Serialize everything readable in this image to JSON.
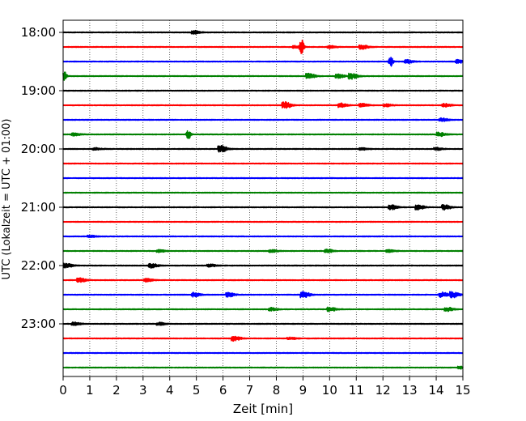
{
  "chart_data": {
    "type": "line",
    "title": "",
    "xlabel": "Zeit  [min]",
    "ylabel": "UTC (Lokalzeit = UTC + 01:00)",
    "xlim": [
      0,
      15
    ],
    "x_ticks": [
      "0",
      "1",
      "2",
      "3",
      "4",
      "5",
      "6",
      "7",
      "8",
      "9",
      "10",
      "11",
      "12",
      "13",
      "14",
      "15"
    ],
    "y_tick_labels": [
      "18:00",
      "19:00",
      "20:00",
      "21:00",
      "22:00",
      "23:00"
    ],
    "grid": "vertical dotted lines at each minute",
    "trace_interval_minutes": 15,
    "trace_colors": [
      "#000000",
      "#ff0000",
      "#0000ff",
      "#008000"
    ],
    "series": [
      {
        "start": "18:00",
        "color": "#000000",
        "events": [
          {
            "t": 4.9,
            "amp": 0.4
          }
        ]
      },
      {
        "start": "18:15",
        "color": "#ff0000",
        "events": [
          {
            "t": 8.7,
            "amp": 0.3
          },
          {
            "t": 8.95,
            "amp": 1.6
          },
          {
            "t": 10.0,
            "amp": 0.3
          },
          {
            "t": 11.2,
            "amp": 0.5
          }
        ]
      },
      {
        "start": "18:30",
        "color": "#0000ff",
        "events": [
          {
            "t": 12.3,
            "amp": 1.2
          },
          {
            "t": 12.9,
            "amp": 0.4
          },
          {
            "t": 14.8,
            "amp": 0.4
          }
        ]
      },
      {
        "start": "18:45",
        "color": "#008000",
        "events": [
          {
            "t": 0.05,
            "amp": 1.1
          },
          {
            "t": 9.2,
            "amp": 0.7
          },
          {
            "t": 10.3,
            "amp": 0.5
          },
          {
            "t": 10.8,
            "amp": 0.7
          }
        ]
      },
      {
        "start": "19:00",
        "color": "#000000",
        "events": []
      },
      {
        "start": "19:15",
        "color": "#ff0000",
        "events": [
          {
            "t": 8.3,
            "amp": 0.8
          },
          {
            "t": 10.4,
            "amp": 0.5
          },
          {
            "t": 11.2,
            "amp": 0.4
          },
          {
            "t": 12.1,
            "amp": 0.3
          },
          {
            "t": 14.3,
            "amp": 0.4
          }
        ]
      },
      {
        "start": "19:30",
        "color": "#0000ff",
        "events": [
          {
            "t": 14.2,
            "amp": 0.4
          }
        ]
      },
      {
        "start": "19:45",
        "color": "#008000",
        "events": [
          {
            "t": 0.4,
            "amp": 0.3
          },
          {
            "t": 4.7,
            "amp": 1.1
          },
          {
            "t": 14.1,
            "amp": 0.5
          }
        ]
      },
      {
        "start": "20:00",
        "color": "#000000",
        "events": [
          {
            "t": 1.2,
            "amp": 0.25
          },
          {
            "t": 5.9,
            "amp": 0.8
          },
          {
            "t": 11.2,
            "amp": 0.25
          },
          {
            "t": 14.0,
            "amp": 0.3
          }
        ]
      },
      {
        "start": "20:15",
        "color": "#ff0000",
        "events": []
      },
      {
        "start": "20:30",
        "color": "#0000ff",
        "events": []
      },
      {
        "start": "20:45",
        "color": "#008000",
        "events": []
      },
      {
        "start": "21:00",
        "color": "#000000",
        "events": [
          {
            "t": 12.3,
            "amp": 0.6
          },
          {
            "t": 13.3,
            "amp": 0.6
          },
          {
            "t": 14.3,
            "amp": 0.6
          }
        ]
      },
      {
        "start": "21:15",
        "color": "#ff0000",
        "events": []
      },
      {
        "start": "21:30",
        "color": "#0000ff",
        "events": [
          {
            "t": 1.0,
            "amp": 0.25
          }
        ]
      },
      {
        "start": "21:45",
        "color": "#008000",
        "events": [
          {
            "t": 3.6,
            "amp": 0.3
          },
          {
            "t": 7.8,
            "amp": 0.3
          },
          {
            "t": 9.9,
            "amp": 0.4
          },
          {
            "t": 12.2,
            "amp": 0.3
          }
        ]
      },
      {
        "start": "22:00",
        "color": "#000000",
        "events": [
          {
            "t": 0.1,
            "amp": 0.5
          },
          {
            "t": 3.3,
            "amp": 0.5
          },
          {
            "t": 5.5,
            "amp": 0.3
          }
        ]
      },
      {
        "start": "22:15",
        "color": "#ff0000",
        "events": [
          {
            "t": 0.6,
            "amp": 0.5
          },
          {
            "t": 3.1,
            "amp": 0.4
          }
        ]
      },
      {
        "start": "22:30",
        "color": "#0000ff",
        "events": [
          {
            "t": 4.9,
            "amp": 0.5
          },
          {
            "t": 6.2,
            "amp": 0.5
          },
          {
            "t": 9.0,
            "amp": 0.8
          },
          {
            "t": 14.2,
            "amp": 0.6
          },
          {
            "t": 14.6,
            "amp": 0.7
          }
        ]
      },
      {
        "start": "22:45",
        "color": "#008000",
        "events": [
          {
            "t": 7.8,
            "amp": 0.35
          },
          {
            "t": 10.0,
            "amp": 0.5
          },
          {
            "t": 14.4,
            "amp": 0.45
          }
        ]
      },
      {
        "start": "23:00",
        "color": "#000000",
        "events": [
          {
            "t": 0.4,
            "amp": 0.35
          },
          {
            "t": 3.6,
            "amp": 0.35
          }
        ]
      },
      {
        "start": "23:15",
        "color": "#ff0000",
        "events": [
          {
            "t": 6.4,
            "amp": 0.6
          },
          {
            "t": 8.5,
            "amp": 0.25
          }
        ]
      },
      {
        "start": "23:30",
        "color": "#0000ff",
        "events": []
      },
      {
        "start": "23:45",
        "color": "#008000",
        "events": [
          {
            "t": 14.9,
            "amp": 0.3
          }
        ]
      }
    ]
  }
}
